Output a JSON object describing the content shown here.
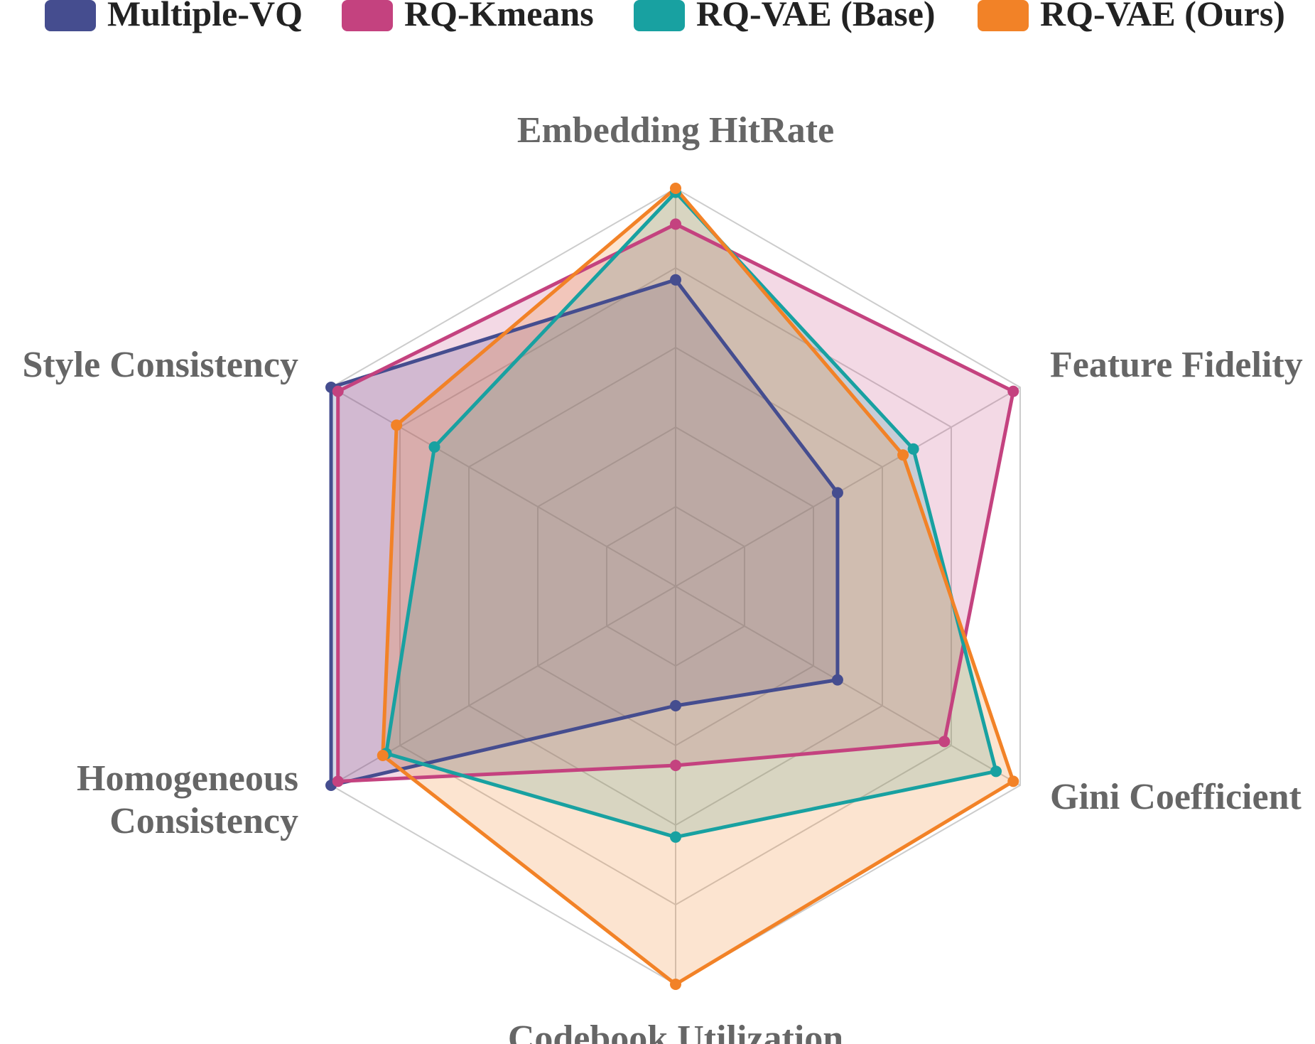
{
  "chart_data": {
    "type": "radar",
    "axes": [
      "Embedding HitRate",
      "Feature Fidelity",
      "Gini Coefficient",
      "Codebook Utilization",
      "Homogeneous Consistency",
      "Style Consistency"
    ],
    "axis_label_lines": [
      [
        "Embedding HitRate"
      ],
      [
        "Feature Fidelity"
      ],
      [
        "Gini Coefficient"
      ],
      [
        "Codebook Utilization"
      ],
      [
        "Homogeneous",
        "Consistency"
      ],
      [
        "Style Consistency"
      ]
    ],
    "range": [
      0,
      1
    ],
    "grid_levels": 5,
    "grid": true,
    "legend_position": "top",
    "series": [
      {
        "name": "Multiple-VQ",
        "color": "#454D8F",
        "fill_opacity": 0.22,
        "values": [
          0.77,
          0.47,
          0.47,
          0.3,
          1.0,
          1.0
        ]
      },
      {
        "name": "RQ-Kmeans",
        "color": "#C4427F",
        "fill_opacity": 0.2,
        "values": [
          0.91,
          0.98,
          0.78,
          0.45,
          0.98,
          0.98
        ]
      },
      {
        "name": "RQ-VAE (Base)",
        "color": "#18A1A1",
        "fill_opacity": 0.2,
        "values": [
          0.99,
          0.69,
          0.93,
          0.63,
          0.84,
          0.7
        ]
      },
      {
        "name": "RQ-VAE (Ours)",
        "color": "#F28227",
        "fill_opacity": 0.22,
        "values": [
          1.0,
          0.66,
          0.98,
          1.0,
          0.85,
          0.81
        ]
      }
    ]
  }
}
